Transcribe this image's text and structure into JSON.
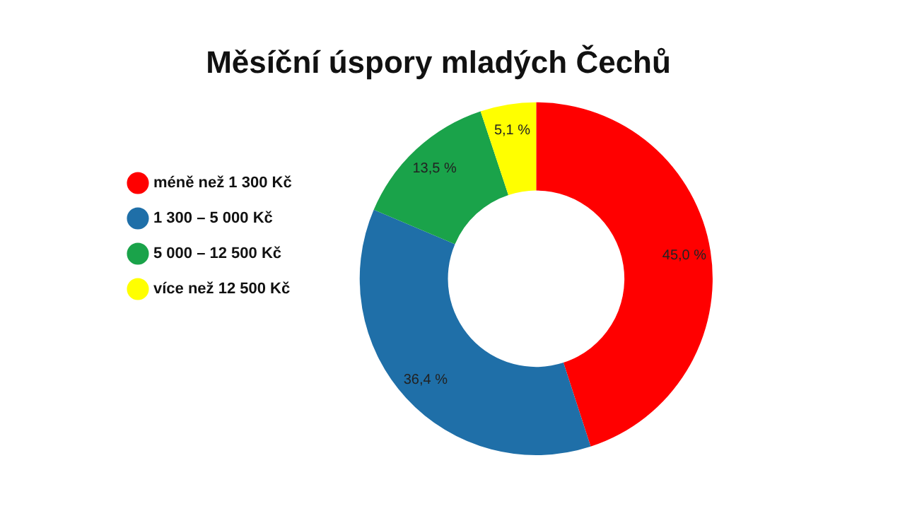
{
  "chart_data": {
    "type": "donut",
    "title": "Měsíční úspory mladých Čechů",
    "categories": [
      "méně než 1 300 Kč",
      "1 300 – 5 000 Kč",
      "5 000 – 12 500 Kč",
      "více než 12 500 Kč"
    ],
    "values": [
      45.0,
      36.4,
      13.5,
      5.1
    ],
    "colors": [
      "#ff0000",
      "#1f6fa8",
      "#1aa34a",
      "#ffff00"
    ],
    "value_labels": [
      "45,0 %",
      "36,4 %",
      "13,5 %",
      "5,1 %"
    ],
    "legend": "left"
  }
}
